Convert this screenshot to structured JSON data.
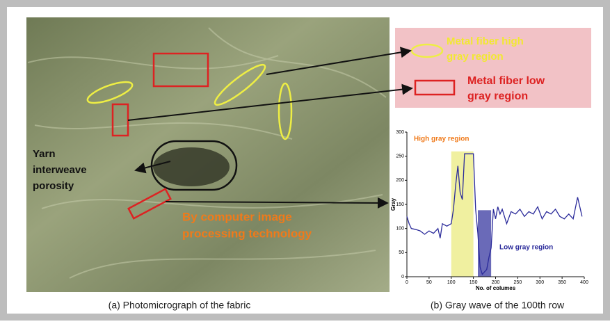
{
  "figure": {
    "photo": {
      "caption": "(a) Photomicrograph of the fabric",
      "porosity_label": [
        "Yarn",
        "interweave",
        "porosity"
      ],
      "processing_label": [
        "By computer image",
        "processing technology"
      ]
    },
    "legend": {
      "high_label": [
        "Metal fiber high",
        "gray region"
      ],
      "low_label": [
        "Metal fiber low",
        "gray  region"
      ]
    },
    "chart_caption": "(b) Gray wave of the 100th row"
  },
  "chart_data": {
    "type": "line",
    "xlabel": "No. of columes",
    "ylabel": "Gray",
    "color": "#2a2a9a",
    "annotations": [
      "High gray region",
      "Low gray region"
    ],
    "xlim": [
      0,
      400
    ],
    "xticks": [
      0,
      50,
      100,
      150,
      200,
      250,
      300,
      350,
      400
    ],
    "ylim": [
      0,
      300
    ],
    "yticks": [
      0,
      50,
      100,
      150,
      200,
      250,
      300
    ],
    "x": [
      0,
      5,
      10,
      20,
      30,
      40,
      50,
      60,
      70,
      75,
      80,
      90,
      100,
      105,
      110,
      115,
      120,
      125,
      130,
      140,
      150,
      155,
      160,
      165,
      170,
      175,
      180,
      185,
      190,
      195,
      200,
      205,
      210,
      215,
      225,
      235,
      245,
      255,
      265,
      275,
      285,
      295,
      305,
      315,
      325,
      335,
      345,
      355,
      365,
      375,
      385,
      390,
      395
    ],
    "values": [
      125,
      110,
      100,
      98,
      95,
      88,
      95,
      90,
      100,
      80,
      110,
      105,
      110,
      140,
      190,
      230,
      175,
      160,
      255,
      255,
      255,
      140,
      90,
      20,
      5,
      10,
      15,
      40,
      60,
      140,
      120,
      145,
      130,
      140,
      110,
      135,
      130,
      140,
      125,
      135,
      130,
      145,
      120,
      135,
      130,
      140,
      125,
      120,
      130,
      120,
      165,
      145,
      125
    ],
    "bands": [
      {
        "color": "#f0f0a0",
        "xlim": [
          100,
          150
        ],
        "value": 260
      },
      {
        "color": "#6a6ab8",
        "xlim": [
          160,
          190
        ],
        "value": 138
      }
    ]
  }
}
